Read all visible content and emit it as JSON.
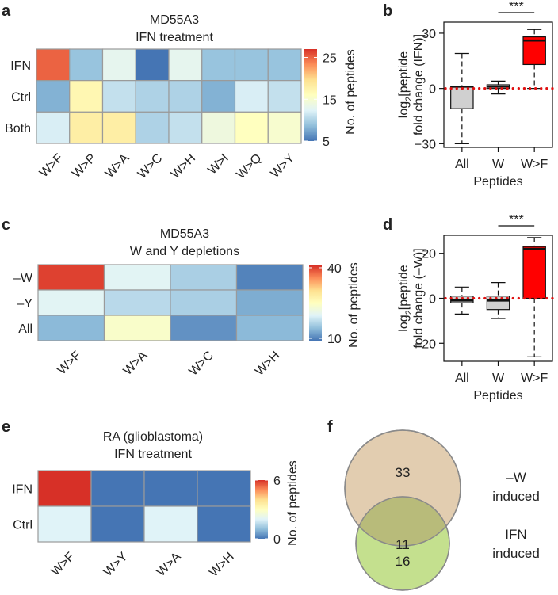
{
  "colors": {
    "scale": [
      "#4575b4",
      "#91bfdb",
      "#e0f3f8",
      "#ffffbf",
      "#fee090",
      "#fc8d59",
      "#d73027"
    ],
    "cell_border": "#9a9a9a",
    "box_grey": "#d0d0d0",
    "box_red": "#ff0000",
    "dotted_ref": "#e01010",
    "venn_top": "#e2cdb0",
    "venn_bottom": "#c4e08e",
    "venn_overlap": "#b8bb7a",
    "venn_stroke": "#8a8a8a"
  },
  "chart_data": [
    {
      "id": "a",
      "type": "heatmap",
      "panel_label": "a",
      "title": [
        "MD55A3",
        "IFN treatment"
      ],
      "rows": [
        "IFN",
        "Ctrl",
        "Both"
      ],
      "columns": [
        "W>F",
        "W>P",
        "W>A",
        "W>C",
        "W>H",
        "W>I",
        "W>Q",
        "W>Y"
      ],
      "values": [
        [
          25,
          9,
          13,
          5,
          13,
          9,
          9,
          9
        ],
        [
          8,
          17,
          11,
          10,
          10,
          8,
          12,
          11
        ],
        [
          12,
          18,
          18,
          10,
          11,
          14,
          16,
          15
        ]
      ],
      "scale_min": 5,
      "scale_max": 27,
      "colorbar_ticks": [
        5,
        15,
        25
      ],
      "colorbar_label": "No. of peptides"
    },
    {
      "id": "b",
      "type": "box",
      "panel_label": "b",
      "ylabel_main": "log",
      "ylabel_sub": "2",
      "ylabel_rest": "[peptide",
      "ylabel_line2": "fold change (IFN)]",
      "xlabel": "Peptides",
      "ylim": [
        -32,
        36
      ],
      "yticks": [
        -30,
        0,
        30
      ],
      "reference_line": 0,
      "significance": "***",
      "boxes": [
        {
          "category": "All",
          "whisker_low": -30,
          "q1": -11,
          "median": 1,
          "q3": 1,
          "whisker_high": 19,
          "fill": "grey"
        },
        {
          "category": "W",
          "whisker_low": -3,
          "q1": 0,
          "median": 1,
          "q3": 2,
          "whisker_high": 4,
          "fill": "grey"
        },
        {
          "category": "W>F",
          "whisker_low": 0,
          "q1": 13,
          "median": 26,
          "q3": 28,
          "whisker_high": 32,
          "fill": "red"
        }
      ]
    },
    {
      "id": "c",
      "type": "heatmap",
      "panel_label": "c",
      "title": [
        "MD55A3",
        "W and Y depletions"
      ],
      "rows": [
        "–W",
        "–Y",
        "All"
      ],
      "columns": [
        "W>F",
        "W>A",
        "W>C",
        "W>H"
      ],
      "values": [
        [
          40,
          20,
          16,
          10
        ],
        [
          20,
          17,
          16,
          13
        ],
        [
          14,
          24,
          11,
          14
        ]
      ],
      "scale_min": 9,
      "scale_max": 41,
      "colorbar_ticks": [
        10,
        40
      ],
      "colorbar_label": "No. of peptides"
    },
    {
      "id": "d",
      "type": "box",
      "panel_label": "d",
      "ylabel_main": "log",
      "ylabel_sub": "2",
      "ylabel_rest": "[peptide",
      "ylabel_line2": "fold change (–W)]",
      "xlabel": "Peptides",
      "ylim": [
        -28,
        28
      ],
      "yticks": [
        -20,
        0,
        20
      ],
      "reference_line": 0,
      "significance": "***",
      "boxes": [
        {
          "category": "All",
          "whisker_low": -7,
          "q1": -2,
          "median": -1,
          "q3": 1,
          "whisker_high": 5,
          "fill": "grey"
        },
        {
          "category": "W",
          "whisker_low": -9,
          "q1": -5,
          "median": -1,
          "q3": 1,
          "whisker_high": 7,
          "fill": "grey"
        },
        {
          "category": "W>F",
          "whisker_low": -26,
          "q1": 0,
          "median": 22,
          "q3": 23,
          "whisker_high": 27,
          "fill": "red"
        }
      ]
    },
    {
      "id": "e",
      "type": "heatmap",
      "panel_label": "e",
      "title": [
        "RA (glioblastoma)",
        "IFN treatment"
      ],
      "rows": [
        "IFN",
        "Ctrl"
      ],
      "columns": [
        "W>F",
        "W>Y",
        "W>A",
        "W>H"
      ],
      "values": [
        [
          6,
          0,
          0,
          0
        ],
        [
          2,
          0,
          2,
          0
        ]
      ],
      "scale_min": 0,
      "scale_max": 6,
      "colorbar_ticks": [
        0,
        6
      ],
      "colorbar_label": "No. of peptides"
    },
    {
      "id": "f",
      "type": "venn",
      "panel_label": "f",
      "sets": [
        {
          "name": "–W",
          "line2": "induced",
          "only": 33
        },
        {
          "name": "IFN",
          "line2": "induced",
          "only": 16
        }
      ],
      "overlap": 11
    }
  ]
}
